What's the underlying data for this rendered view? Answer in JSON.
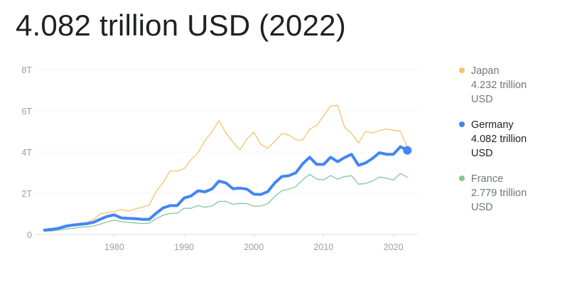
{
  "headline": "4.082 trillion USD (2022)",
  "legend": [
    {
      "name": "Japan",
      "value": "4.232 trillion",
      "unit": "USD",
      "color": "#f6c26b",
      "active": false
    },
    {
      "name": "Germany",
      "value": "4.082 trillion",
      "unit": "USD",
      "color": "#4285f4",
      "active": true
    },
    {
      "name": "France",
      "value": "2.779 trillion",
      "unit": "USD",
      "color": "#81c995",
      "active": false
    }
  ],
  "chart_data": {
    "type": "line",
    "y_ticks": [
      "0",
      "2T",
      "4T",
      "6T",
      "8T"
    ],
    "x_ticks": [
      "1980",
      "1990",
      "2000",
      "2010",
      "2020"
    ],
    "ylim": [
      0,
      8
    ],
    "xlim": [
      1968.5,
      2023.5
    ],
    "grid": true,
    "legend_position": "right",
    "x": [
      1970,
      1971,
      1972,
      1973,
      1974,
      1975,
      1976,
      1977,
      1978,
      1979,
      1980,
      1981,
      1982,
      1983,
      1984,
      1985,
      1986,
      1987,
      1988,
      1989,
      1990,
      1991,
      1992,
      1993,
      1994,
      1995,
      1996,
      1997,
      1998,
      1999,
      2000,
      2001,
      2002,
      2003,
      2004,
      2005,
      2006,
      2007,
      2008,
      2009,
      2010,
      2011,
      2012,
      2013,
      2014,
      2015,
      2016,
      2017,
      2018,
      2019,
      2020,
      2021,
      2022
    ],
    "series": [
      {
        "name": "Japan",
        "color": "#f6c26b",
        "width": 1.3,
        "values": [
          0.21,
          0.24,
          0.31,
          0.43,
          0.47,
          0.52,
          0.58,
          0.72,
          1.01,
          1.06,
          1.11,
          1.22,
          1.13,
          1.24,
          1.32,
          1.43,
          2.09,
          2.52,
          3.09,
          3.07,
          3.19,
          3.63,
          3.98,
          4.56,
          4.99,
          5.52,
          4.92,
          4.49,
          4.1,
          4.64,
          4.97,
          4.37,
          4.18,
          4.52,
          4.89,
          4.83,
          4.6,
          4.58,
          5.11,
          5.29,
          5.76,
          6.23,
          6.27,
          5.21,
          4.9,
          4.44,
          5.0,
          4.93,
          5.04,
          5.12,
          5.06,
          5.01,
          4.23
        ]
      },
      {
        "name": "France",
        "color": "#81c995",
        "width": 1.3,
        "values": [
          0.15,
          0.17,
          0.21,
          0.27,
          0.29,
          0.36,
          0.37,
          0.41,
          0.51,
          0.61,
          0.7,
          0.62,
          0.59,
          0.56,
          0.53,
          0.55,
          0.77,
          0.93,
          1.02,
          1.03,
          1.27,
          1.27,
          1.4,
          1.32,
          1.39,
          1.6,
          1.61,
          1.46,
          1.51,
          1.5,
          1.37,
          1.38,
          1.5,
          1.84,
          2.12,
          2.2,
          2.32,
          2.66,
          2.92,
          2.69,
          2.65,
          2.86,
          2.68,
          2.81,
          2.85,
          2.44,
          2.47,
          2.59,
          2.79,
          2.73,
          2.64,
          2.96,
          2.78
        ]
      },
      {
        "name": "Germany",
        "color": "#4285f4",
        "width": 4,
        "values": [
          0.21,
          0.25,
          0.3,
          0.4,
          0.45,
          0.49,
          0.52,
          0.59,
          0.74,
          0.88,
          0.95,
          0.8,
          0.78,
          0.77,
          0.73,
          0.73,
          1.03,
          1.29,
          1.4,
          1.4,
          1.77,
          1.87,
          2.12,
          2.07,
          2.21,
          2.59,
          2.5,
          2.22,
          2.25,
          2.2,
          1.95,
          1.94,
          2.08,
          2.5,
          2.81,
          2.85,
          2.99,
          3.43,
          3.75,
          3.4,
          3.4,
          3.75,
          3.53,
          3.73,
          3.89,
          3.36,
          3.47,
          3.69,
          3.97,
          3.89,
          3.89,
          4.26,
          4.08
        ]
      }
    ]
  }
}
